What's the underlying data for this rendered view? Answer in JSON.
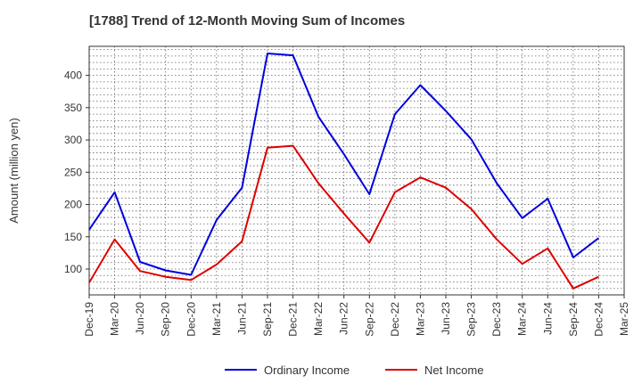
{
  "chart_data": {
    "type": "line",
    "title": "[1788]  Trend of 12-Month Moving Sum of Incomes",
    "xlabel": "",
    "ylabel": "Amount (million yen)",
    "ylim": [
      60,
      445
    ],
    "yticks": [
      100,
      150,
      200,
      250,
      300,
      350,
      400
    ],
    "categories": [
      "Dec-19",
      "Mar-20",
      "Jun-20",
      "Sep-20",
      "Dec-20",
      "Mar-21",
      "Jun-21",
      "Sep-21",
      "Dec-21",
      "Mar-22",
      "Jun-22",
      "Sep-22",
      "Dec-22",
      "Mar-23",
      "Jun-23",
      "Sep-23",
      "Dec-23",
      "Mar-24",
      "Jun-24",
      "Sep-24",
      "Dec-24",
      "Mar-25"
    ],
    "grid": true,
    "legend_position": "bottom-center",
    "series": [
      {
        "name": "Ordinary Income",
        "color": "#0000dd",
        "values": [
          161,
          219,
          111,
          98,
          91,
          176,
          226,
          434,
          431,
          336,
          278,
          216,
          340,
          385,
          345,
          301,
          233,
          179,
          209,
          118,
          148,
          null
        ]
      },
      {
        "name": "Net Income",
        "color": "#dd0000",
        "values": [
          79,
          146,
          97,
          88,
          83,
          107,
          143,
          288,
          291,
          233,
          186,
          141,
          219,
          242,
          226,
          193,
          146,
          108,
          132,
          70,
          88,
          null
        ]
      }
    ]
  }
}
